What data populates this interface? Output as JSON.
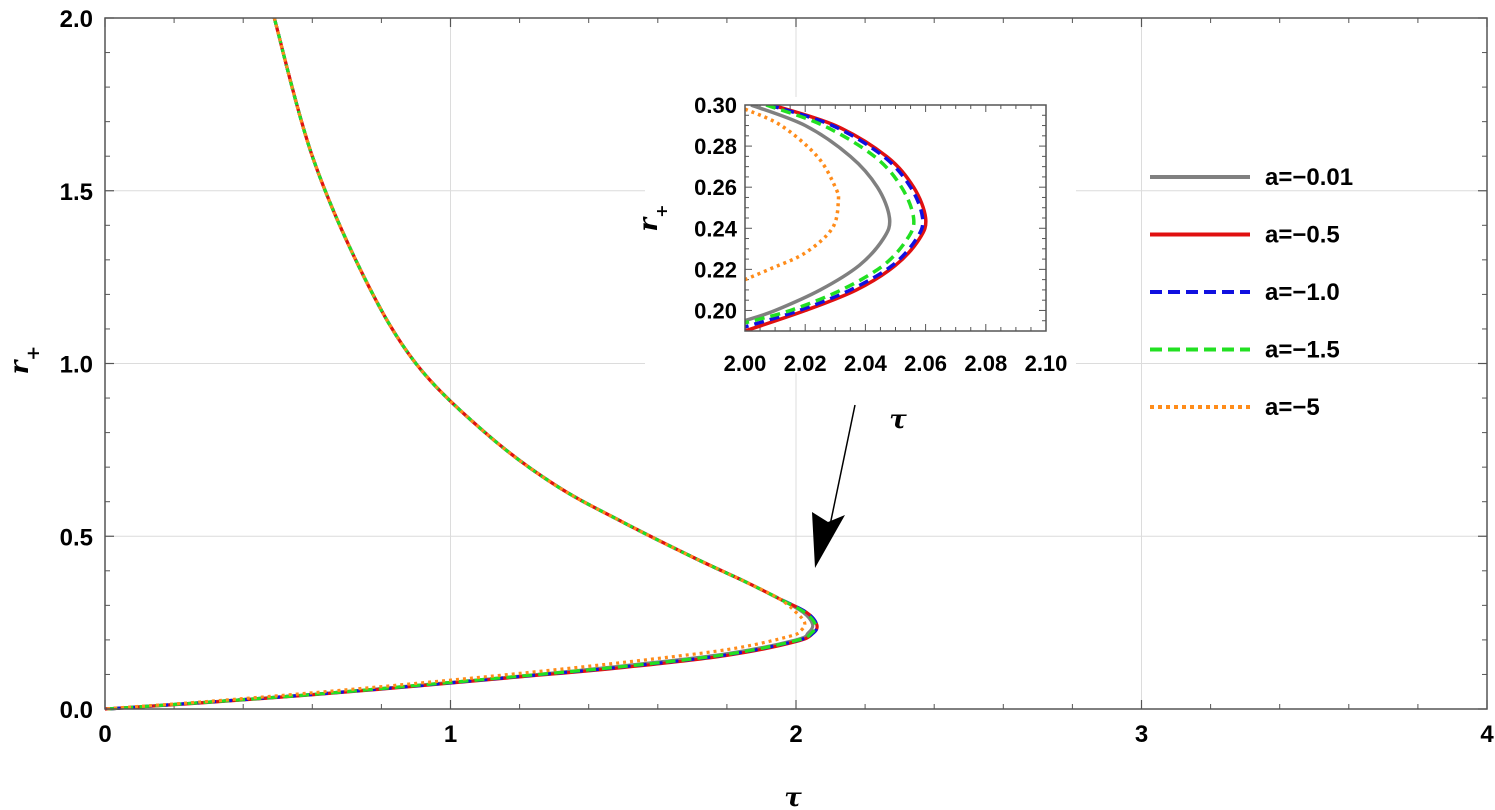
{
  "chart_data": [
    {
      "type": "line",
      "xlabel": "τ",
      "ylabel_base": "r",
      "ylabel_sub": "+",
      "xlim": [
        0,
        4
      ],
      "ylim": [
        0,
        2
      ],
      "grid": true,
      "x_ticks": [
        "0",
        "1",
        "2",
        "3",
        "4"
      ],
      "y_ticks": [
        "0.0",
        "0.5",
        "1.0",
        "1.5",
        "2.0"
      ],
      "legend_position": "right",
      "series": [
        {
          "name": "a=−0.01",
          "color": "#808080",
          "dash": "solid",
          "points": [
            [
              0.49,
              2.0
            ],
            [
              0.6,
              1.6
            ],
            [
              0.75,
              1.25
            ],
            [
              0.9,
              1.0
            ],
            [
              1.1,
              0.8
            ],
            [
              1.3,
              0.65
            ],
            [
              1.5,
              0.54
            ],
            [
              1.7,
              0.44
            ],
            [
              1.85,
              0.37
            ],
            [
              1.95,
              0.32
            ],
            [
              2.02,
              0.28
            ],
            [
              2.048,
              0.245
            ],
            [
              2.035,
              0.22
            ],
            [
              2.0,
              0.2
            ],
            [
              1.8,
              0.16
            ],
            [
              1.5,
              0.125
            ],
            [
              1.2,
              0.095
            ],
            [
              0.9,
              0.068
            ],
            [
              0.6,
              0.042
            ],
            [
              0.3,
              0.02
            ],
            [
              0.05,
              0.003
            ],
            [
              0.0,
              0.0
            ]
          ]
        },
        {
          "name": "a=−0.5",
          "color": "#e01010",
          "dash": "solid",
          "points": [
            [
              0.49,
              2.0
            ],
            [
              0.6,
              1.6
            ],
            [
              0.75,
              1.25
            ],
            [
              0.9,
              1.0
            ],
            [
              1.1,
              0.8
            ],
            [
              1.3,
              0.65
            ],
            [
              1.5,
              0.54
            ],
            [
              1.7,
              0.44
            ],
            [
              1.85,
              0.37
            ],
            [
              1.95,
              0.32
            ],
            [
              2.03,
              0.28
            ],
            [
              2.06,
              0.245
            ],
            [
              2.05,
              0.22
            ],
            [
              2.0,
              0.195
            ],
            [
              1.8,
              0.155
            ],
            [
              1.5,
              0.12
            ],
            [
              1.2,
              0.093
            ],
            [
              0.9,
              0.066
            ],
            [
              0.6,
              0.041
            ],
            [
              0.3,
              0.019
            ],
            [
              0.05,
              0.003
            ],
            [
              0.0,
              0.0
            ]
          ]
        },
        {
          "name": "a=−1.0",
          "color": "#1010e0",
          "dash": "dashed",
          "points": [
            [
              0.49,
              2.0
            ],
            [
              0.6,
              1.6
            ],
            [
              0.75,
              1.25
            ],
            [
              0.9,
              1.0
            ],
            [
              1.1,
              0.8
            ],
            [
              1.3,
              0.65
            ],
            [
              1.5,
              0.54
            ],
            [
              1.7,
              0.44
            ],
            [
              1.85,
              0.37
            ],
            [
              1.95,
              0.32
            ],
            [
              2.03,
              0.28
            ],
            [
              2.06,
              0.245
            ],
            [
              2.05,
              0.22
            ],
            [
              2.0,
              0.197
            ],
            [
              1.8,
              0.157
            ],
            [
              1.5,
              0.122
            ],
            [
              1.2,
              0.094
            ],
            [
              0.9,
              0.067
            ],
            [
              0.6,
              0.042
            ],
            [
              0.3,
              0.02
            ],
            [
              0.05,
              0.003
            ],
            [
              0.0,
              0.0
            ]
          ]
        },
        {
          "name": "a=−1.5",
          "color": "#22e022",
          "dash": "dashed",
          "points": [
            [
              0.49,
              2.0
            ],
            [
              0.6,
              1.6
            ],
            [
              0.75,
              1.25
            ],
            [
              0.9,
              1.0
            ],
            [
              1.1,
              0.8
            ],
            [
              1.3,
              0.65
            ],
            [
              1.5,
              0.54
            ],
            [
              1.7,
              0.44
            ],
            [
              1.85,
              0.37
            ],
            [
              1.95,
              0.32
            ],
            [
              2.025,
              0.28
            ],
            [
              2.056,
              0.245
            ],
            [
              2.045,
              0.22
            ],
            [
              2.0,
              0.198
            ],
            [
              1.8,
              0.158
            ],
            [
              1.5,
              0.123
            ],
            [
              1.2,
              0.095
            ],
            [
              0.9,
              0.068
            ],
            [
              0.6,
              0.042
            ],
            [
              0.3,
              0.02
            ],
            [
              0.05,
              0.003
            ],
            [
              0.0,
              0.0
            ]
          ]
        },
        {
          "name": "a=−5",
          "color": "#ff8c1a",
          "dash": "dotted",
          "points": [
            [
              0.49,
              2.0
            ],
            [
              0.6,
              1.6
            ],
            [
              0.75,
              1.25
            ],
            [
              0.9,
              1.0
            ],
            [
              1.1,
              0.8
            ],
            [
              1.3,
              0.65
            ],
            [
              1.5,
              0.54
            ],
            [
              1.7,
              0.44
            ],
            [
              1.85,
              0.37
            ],
            [
              1.95,
              0.32
            ],
            [
              2.0,
              0.28
            ],
            [
              2.025,
              0.25
            ],
            [
              2.015,
              0.228
            ],
            [
              1.98,
              0.21
            ],
            [
              1.8,
              0.172
            ],
            [
              1.5,
              0.135
            ],
            [
              1.2,
              0.103
            ],
            [
              0.9,
              0.074
            ],
            [
              0.6,
              0.047
            ],
            [
              0.3,
              0.022
            ],
            [
              0.05,
              0.004
            ],
            [
              0.0,
              0.0
            ]
          ]
        }
      ]
    },
    {
      "type": "line",
      "role": "inset",
      "xlabel": "τ",
      "ylabel_base": "r",
      "ylabel_sub": "+",
      "xlim": [
        2.0,
        2.1
      ],
      "ylim": [
        0.19,
        0.3
      ],
      "x_ticks": [
        "2.00",
        "2.02",
        "2.04",
        "2.06",
        "2.08",
        "2.10"
      ],
      "y_ticks": [
        "0.20",
        "0.22",
        "0.24",
        "0.26",
        "0.28",
        "0.30"
      ],
      "series": [
        {
          "name": "a=−0.01",
          "points": [
            [
              2.002,
              0.3
            ],
            [
              2.02,
              0.29
            ],
            [
              2.035,
              0.275
            ],
            [
              2.044,
              0.26
            ],
            [
              2.048,
              0.245
            ],
            [
              2.046,
              0.235
            ],
            [
              2.038,
              0.222
            ],
            [
              2.025,
              0.21
            ],
            [
              2.01,
              0.2
            ],
            [
              2.0,
              0.195
            ]
          ]
        },
        {
          "name": "a=−0.5",
          "points": [
            [
              2.009,
              0.3
            ],
            [
              2.03,
              0.29
            ],
            [
              2.047,
              0.275
            ],
            [
              2.056,
              0.26
            ],
            [
              2.06,
              0.245
            ],
            [
              2.058,
              0.235
            ],
            [
              2.05,
              0.222
            ],
            [
              2.037,
              0.21
            ],
            [
              2.02,
              0.2
            ],
            [
              2.0,
              0.19
            ]
          ]
        },
        {
          "name": "a=−1.0",
          "points": [
            [
              2.008,
              0.3
            ],
            [
              2.029,
              0.29
            ],
            [
              2.046,
              0.275
            ],
            [
              2.055,
              0.26
            ],
            [
              2.059,
              0.245
            ],
            [
              2.057,
              0.235
            ],
            [
              2.049,
              0.222
            ],
            [
              2.035,
              0.21
            ],
            [
              2.018,
              0.2
            ],
            [
              2.0,
              0.192
            ]
          ]
        },
        {
          "name": "a=−1.5",
          "points": [
            [
              2.007,
              0.3
            ],
            [
              2.026,
              0.29
            ],
            [
              2.043,
              0.275
            ],
            [
              2.052,
              0.26
            ],
            [
              2.056,
              0.245
            ],
            [
              2.054,
              0.235
            ],
            [
              2.046,
              0.222
            ],
            [
              2.032,
              0.21
            ],
            [
              2.015,
              0.2
            ],
            [
              2.0,
              0.194
            ]
          ]
        },
        {
          "name": "a=−5",
          "points": [
            [
              2.0,
              0.298
            ],
            [
              2.012,
              0.29
            ],
            [
              2.024,
              0.275
            ],
            [
              2.03,
              0.26
            ],
            [
              2.031,
              0.253
            ],
            [
              2.029,
              0.24
            ],
            [
              2.02,
              0.228
            ],
            [
              2.008,
              0.22
            ],
            [
              2.0,
              0.215
            ]
          ]
        }
      ]
    }
  ]
}
